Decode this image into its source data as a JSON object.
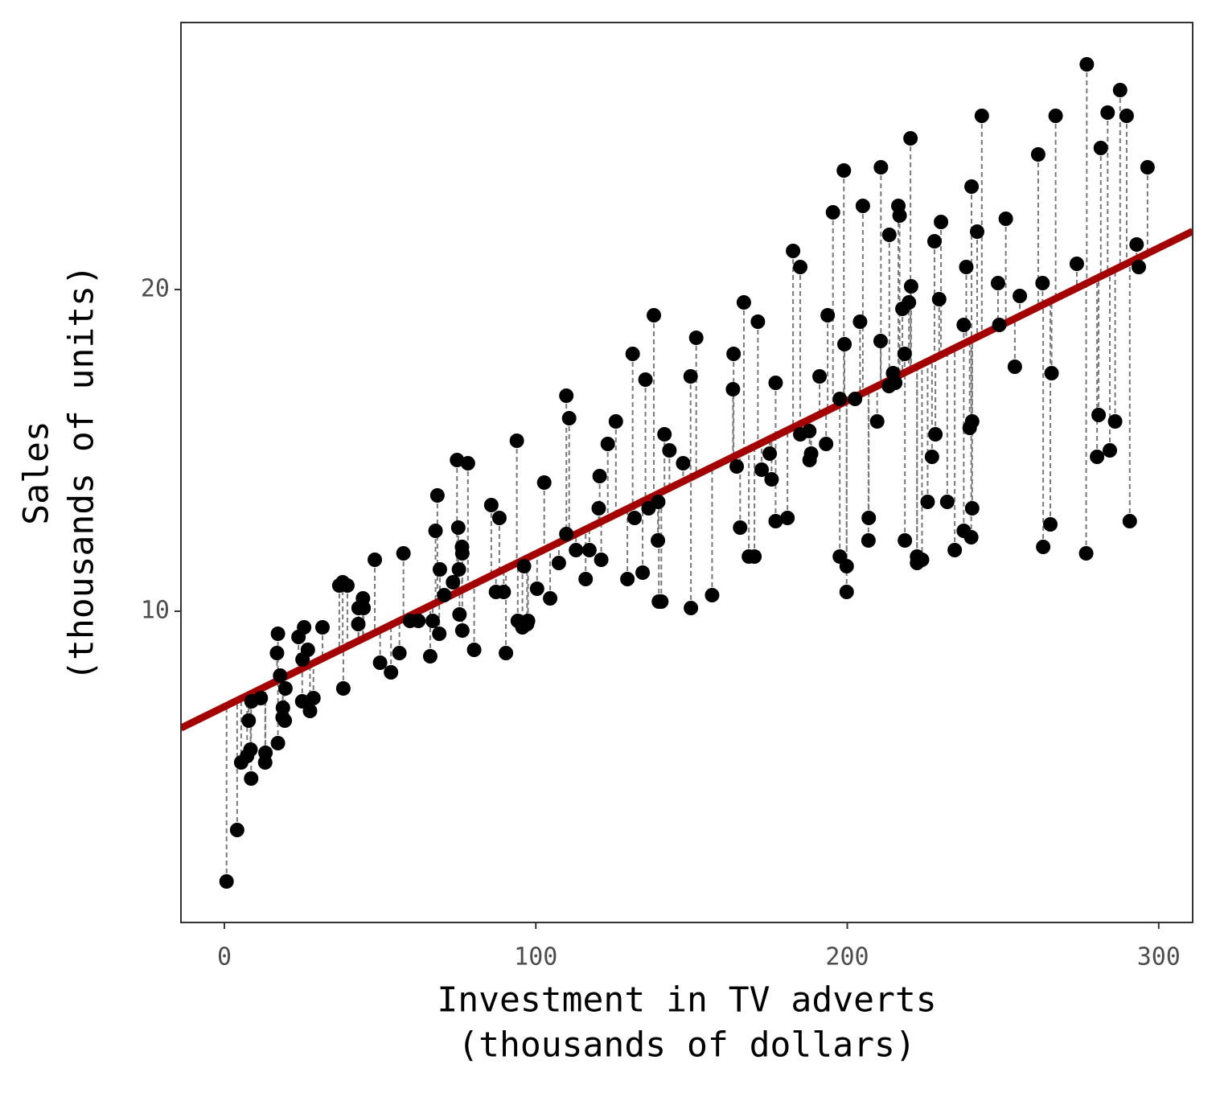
{
  "chart_data": {
    "type": "scatter",
    "xlabel": [
      "Investment in TV adverts",
      "(thousands of dollars)"
    ],
    "ylabel": [
      "Sales",
      "(thousands of units)"
    ],
    "x": [
      230.1,
      44.5,
      17.2,
      151.5,
      180.8,
      8.7,
      57.5,
      120.2,
      8.6,
      199.8,
      66.1,
      214.7,
      23.8,
      97.5,
      204.1,
      195.4,
      67.8,
      281.4,
      69.2,
      147.3,
      218.4,
      237.4,
      13.2,
      228.3,
      62.3,
      262.9,
      142.9,
      240.1,
      248.8,
      70.6,
      292.9,
      112.9,
      97.2,
      265.6,
      95.7,
      290.7,
      266.9,
      74.7,
      43.1,
      228,
      202.5,
      177,
      293.6,
      206.9,
      25.1,
      175.1,
      89.7,
      239.9,
      227.2,
      66.9,
      199.8,
      100.4,
      216.4,
      182.6,
      262.7,
      198.9,
      7.3,
      136.2,
      210.8,
      210.7,
      53.5,
      261.3,
      239.3,
      102.7,
      131.1,
      69,
      31.5,
      139.3,
      237.4,
      216.8,
      199.1,
      109.8,
      26.8,
      129.4,
      213.4,
      16.9,
      27.5,
      120.5,
      5.4,
      116,
      76.4,
      239.8,
      75.3,
      68.4,
      213.5,
      193.2,
      76.3,
      110.7,
      88.3,
      109.8,
      134.3,
      28.6,
      217.7,
      250.9,
      107.4,
      163.3,
      197.6,
      184.9,
      289.7,
      135.2,
      222.4,
      296.4,
      280.2,
      187.9,
      238.2,
      137.9,
      25,
      90.4,
      13.1,
      255.4,
      225.8,
      241.7,
      175.7,
      209.6,
      78.2,
      75.1,
      139.2,
      76.4,
      125.7,
      19.4,
      141.3,
      18.8,
      224,
      123.1,
      229.5,
      87.2,
      7.8,
      80.2,
      220.3,
      59.6,
      0.7,
      265.2,
      8.4,
      219.8,
      36.9,
      48.3,
      25.6,
      273.7,
      43,
      184.9,
      73.4,
      193.7,
      220.5,
      104.6,
      96.2,
      140.3,
      240.1,
      243.2,
      38,
      44.7,
      280.7,
      121,
      197.6,
      171.3,
      187.8,
      4.1,
      93.9,
      149.8,
      11.7,
      131.7,
      172.5,
      85.7,
      188.4,
      163.5,
      117.2,
      234.5,
      17.9,
      206.8,
      215.4,
      284.3,
      50,
      164.5,
      19.6,
      168.4,
      222.4,
      276.9,
      248.4,
      170.2,
      276.7,
      165.6,
      156.6,
      218.5,
      56.2,
      287.6,
      253.8,
      205,
      139.5,
      191.1,
      286,
      18.7,
      39.5,
      75.5,
      17.2,
      166.8,
      149.7,
      38.2,
      94.2,
      177,
      283.6,
      232.1
    ],
    "y": [
      22.1,
      10.4,
      9.3,
      18.5,
      12.9,
      7.2,
      11.8,
      13.2,
      4.8,
      10.6,
      8.6,
      17.4,
      9.2,
      9.7,
      19,
      22.4,
      12.5,
      24.4,
      11.3,
      14.6,
      18,
      12.5,
      5.6,
      15.5,
      9.7,
      12,
      15,
      15.9,
      18.9,
      10.5,
      21.4,
      11.9,
      9.6,
      17.4,
      9.5,
      12.8,
      25.4,
      14.7,
      10.1,
      21.5,
      16.6,
      17.1,
      20.7,
      12.9,
      8.5,
      14.9,
      10.6,
      23.2,
      14.8,
      9.7,
      11.4,
      10.7,
      22.6,
      21.2,
      20.2,
      23.7,
      5.5,
      13.2,
      23.8,
      18.4,
      8.1,
      24.2,
      15.7,
      14,
      18,
      9.3,
      9.5,
      13.4,
      18.9,
      22.3,
      18.3,
      12.4,
      8.8,
      11,
      17,
      8.7,
      6.9,
      14.2,
      5.3,
      11,
      11.8,
      12.3,
      11.3,
      13.6,
      21.7,
      15.2,
      12,
      16,
      12.9,
      16.7,
      11.2,
      7.3,
      19.4,
      22.2,
      11.5,
      16.9,
      11.7,
      15.5,
      25.4,
      17.2,
      11.7,
      23.8,
      14.8,
      14.7,
      20.7,
      19.2,
      7.2,
      8.7,
      5.3,
      19.8,
      13.4,
      21.8,
      14.1,
      15.9,
      14.6,
      12.6,
      12.2,
      9.4,
      15.9,
      6.6,
      15.5,
      7,
      11.6,
      15.2,
      19.7,
      10.6,
      6.6,
      8.8,
      24.7,
      9.7,
      1.6,
      12.7,
      5.7,
      19.6,
      10.8,
      11.6,
      9.5,
      20.8,
      9.6,
      20.7,
      10.9,
      19.2,
      20.1,
      10.4,
      11.4,
      10.3,
      13.2,
      25.4,
      10.9,
      10.1,
      16.1,
      11.6,
      16.6,
      19,
      15.6,
      3.2,
      15.3,
      10.1,
      7.3,
      12.9,
      14.4,
      13.3,
      14.9,
      18,
      11.9,
      11.9,
      8,
      12.2,
      17.1,
      15,
      8.4,
      14.5,
      7.6,
      11.7,
      11.5,
      27,
      20.2,
      11.7,
      11.8,
      12.6,
      10.5,
      12.2,
      8.7,
      26.2,
      17.6,
      22.6,
      10.3,
      17.3,
      15.9,
      6.7,
      10.8,
      9.9,
      5.9,
      19.6,
      17.3,
      7.6,
      9.7,
      12.8,
      25.5,
      13.4
    ],
    "color": "#000000",
    "fit": {
      "intercept": 7.0326,
      "slope": 0.04754,
      "color": "#a50000"
    },
    "residual_color": "#7a7a7a",
    "xlim": [
      -13.94,
      310.9
    ],
    "ylim": [
      0.325,
      28.3
    ],
    "xticks": [
      0,
      100,
      200,
      300
    ],
    "yticks": [
      10,
      20
    ]
  }
}
